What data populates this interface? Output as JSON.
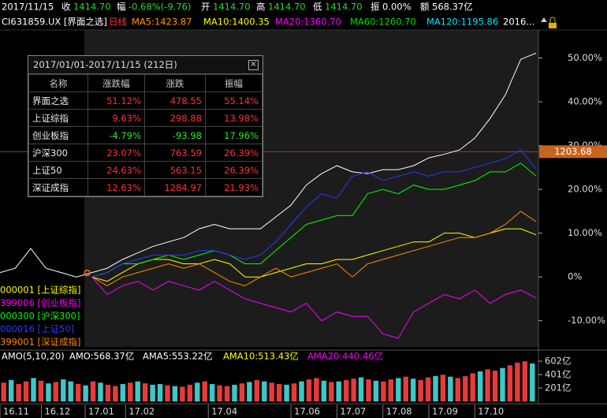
{
  "quote_bar": {
    "date": "2017/11/15",
    "items": [
      {
        "label": "收",
        "value": "1414.70",
        "color": "#22dd22"
      },
      {
        "label": "幅",
        "value": "-0.68%(-9.76)",
        "color": "#22dd22"
      },
      {
        "label": "开",
        "value": "1414.70",
        "color": "#22dd22"
      },
      {
        "label": "高",
        "value": "1414.70",
        "color": "#22dd22"
      },
      {
        "label": "低",
        "value": "1414.70",
        "color": "#22dd22"
      },
      {
        "label": "振",
        "value": "0.00%",
        "color": "#ffffff"
      },
      {
        "label": "额",
        "value": "568.37亿",
        "color": "#ffffff"
      }
    ]
  },
  "ma_bar": {
    "symbol": "CI631859.UX [界面之选]",
    "period": "日线",
    "items": [
      {
        "text": "MA5:1423.87",
        "color": "#ff9900"
      },
      {
        "text": "MA10:1400.35",
        "color": "#ffff00"
      },
      {
        "text": "MA20:1360.70",
        "color": "#ff00ff"
      },
      {
        "text": "MA60:1260.70",
        "color": "#00dd00"
      },
      {
        "text": "MA120:1195.86",
        "color": "#00e5ff"
      },
      {
        "text": "2016...",
        "color": "#ffffff"
      }
    ]
  },
  "chart_data": {
    "type": "line",
    "xlim": [
      0,
      35
    ],
    "ylim": [
      -16,
      56.4
    ],
    "yticks": [
      {
        "value": 50,
        "label": "50.00%"
      },
      {
        "value": 40,
        "label": "40.00%"
      },
      {
        "value": 30,
        "label": "30.00%"
      },
      {
        "value": 20,
        "label": "20.00%"
      },
      {
        "value": 10,
        "label": "10.00%"
      },
      {
        "value": 0,
        "label": "0%"
      },
      {
        "value": -10,
        "label": "-10.00%"
      }
    ],
    "xticks": [
      {
        "value": 0,
        "label": "16.11"
      },
      {
        "value": 2.7,
        "label": "16.12"
      },
      {
        "value": 5.56,
        "label": "17.01"
      },
      {
        "value": 8.2,
        "label": "17.02"
      },
      {
        "value": 13.6,
        "label": "17.04"
      },
      {
        "value": 19,
        "label": "17.06"
      },
      {
        "value": 22,
        "label": "17.07"
      },
      {
        "value": 25,
        "label": "17.08"
      },
      {
        "value": 28,
        "label": "17.09"
      },
      {
        "value": 31,
        "label": "17.10"
      }
    ],
    "marker": {
      "value": 28.6,
      "label": "1203.68",
      "color": "#c8641e"
    },
    "series": [
      {
        "color": "#ffffff",
        "values": [
          1,
          2,
          6.5,
          2,
          1,
          0,
          1,
          2,
          4,
          5.5,
          7,
          8,
          9,
          11,
          12,
          11,
          11,
          11,
          13.7,
          16.4,
          21,
          23.6,
          25.4,
          24,
          23.6,
          24.5,
          24.5,
          25.4,
          27.2,
          28,
          29,
          31.7,
          36.2,
          41.6,
          49.7,
          51.12
        ]
      },
      {
        "name": "000001 [上证综指]",
        "color": "#ffff00",
        "values": [
          null,
          null,
          null,
          null,
          null,
          null,
          0,
          -1,
          1,
          3,
          4,
          4,
          3,
          3,
          4,
          3,
          0,
          0,
          1,
          2,
          3,
          3,
          4,
          4,
          5,
          6,
          7,
          8,
          8,
          10,
          10,
          9,
          10,
          11,
          11,
          9.63
        ]
      },
      {
        "name": "399006 [创业板指]",
        "color": "#ff00ff",
        "values": [
          null,
          null,
          null,
          null,
          null,
          null,
          0,
          -4,
          -2,
          -1,
          -3,
          -1,
          -2,
          -3,
          -1,
          -3,
          -5,
          -6,
          -7,
          -8,
          -6,
          -10,
          -8,
          -9,
          -9,
          -13,
          -14,
          -8,
          -6,
          -4,
          -5,
          -3,
          -6,
          -4,
          -3,
          -4.79
        ]
      },
      {
        "name": "000300 [沪深300]",
        "color": "#00ff00",
        "values": [
          null,
          null,
          null,
          null,
          null,
          null,
          0,
          1,
          3,
          3,
          4,
          5,
          4,
          5,
          6,
          5,
          3,
          3,
          6,
          9,
          12,
          13,
          14,
          14,
          19,
          20,
          19,
          21,
          20,
          20,
          21,
          22,
          24,
          24,
          26,
          23.07
        ]
      },
      {
        "name": "000016 [上证50]",
        "color": "#2838ff",
        "values": [
          null,
          null,
          null,
          null,
          null,
          null,
          0,
          1,
          3,
          4,
          5,
          5,
          5,
          6,
          6,
          5,
          4,
          5,
          8,
          12,
          16,
          19,
          18,
          23,
          24,
          22,
          23,
          24,
          23,
          24,
          24,
          25,
          26,
          27,
          29,
          24.63
        ]
      },
      {
        "name": "399001 [深证成指]",
        "color": "#ff8c00",
        "values": [
          null,
          null,
          null,
          null,
          null,
          null,
          0,
          -2,
          0,
          1,
          2,
          3,
          2,
          3,
          1,
          -1,
          -2,
          0,
          2,
          0,
          1,
          2,
          3,
          0,
          3,
          4,
          5,
          6,
          7,
          8,
          9,
          9,
          10,
          12,
          15,
          12.63
        ]
      }
    ]
  },
  "range_table": {
    "title": "2017/01/01-2017/11/15 (212日)",
    "columns": [
      "名称",
      "涨跌幅",
      "涨跌",
      "振幅"
    ],
    "rows": [
      [
        "界面之选",
        "51.12%",
        "478.55",
        "55.14%"
      ],
      [
        "上证综指",
        "9.63%",
        "298.88",
        "13.98%"
      ],
      [
        "创业板指",
        "-4.79%",
        "-93.98",
        "17.96%"
      ],
      [
        "沪深300",
        "23.07%",
        "763.59",
        "26.39%"
      ],
      [
        "上证50",
        "24.63%",
        "563.15",
        "26.39%"
      ],
      [
        "深证成指",
        "12.63%",
        "1284.97",
        "21.93%"
      ]
    ],
    "up_color": "#ff3030",
    "down_color": "#22ee22"
  },
  "volume_data": {
    "type": "bar",
    "title": "AMO(5,10,20)",
    "labels": [
      {
        "text": "AMO:568.37亿",
        "color": "#ffffff"
      },
      {
        "text": "AMA5:553.22亿",
        "color": "#ffffff"
      },
      {
        "text": "AMA10:513.43亿",
        "color": "#ffff00"
      },
      {
        "text": "AMA20:440.46亿",
        "color": "#ff00ff"
      }
    ],
    "ylim": [
      0,
      720
    ],
    "yticks": [
      {
        "value": 602,
        "label": "602亿"
      },
      {
        "value": 401,
        "label": "401亿"
      },
      {
        "value": 201,
        "label": "201亿"
      }
    ],
    "values": [
      280,
      320,
      260,
      300,
      350,
      310,
      270,
      290,
      330,
      300,
      260,
      240,
      300,
      280,
      250,
      230,
      260,
      280,
      300,
      270,
      250,
      260,
      240,
      230,
      220,
      250,
      280,
      300,
      260,
      240,
      230,
      250,
      270,
      290,
      320,
      300,
      280,
      260,
      250,
      270,
      300,
      330,
      350,
      310,
      290,
      300,
      320,
      340,
      360,
      330,
      310,
      300,
      330,
      350,
      370,
      340,
      320,
      360,
      380,
      400,
      370,
      350,
      380,
      420,
      450,
      480,
      460,
      500,
      540,
      580,
      600,
      568
    ],
    "colors": [
      "#e83a3a",
      "#3cc8c8",
      "#e83a3a",
      "#e83a3a",
      "#3cc8c8",
      "#e83a3a",
      "#3cc8c8",
      "#e83a3a",
      "#3cc8c8",
      "#3cc8c8",
      "#e83a3a",
      "#3cc8c8",
      "#e83a3a",
      "#3cc8c8",
      "#e83a3a",
      "#e83a3a",
      "#3cc8c8",
      "#e83a3a",
      "#3cc8c8",
      "#e83a3a",
      "#3cc8c8",
      "#3cc8c8",
      "#e83a3a",
      "#3cc8c8",
      "#e83a3a",
      "#e83a3a",
      "#3cc8c8",
      "#e83a3a",
      "#3cc8c8",
      "#e83a3a",
      "#e83a3a",
      "#3cc8c8",
      "#e83a3a",
      "#3cc8c8",
      "#e83a3a",
      "#3cc8c8",
      "#e83a3a",
      "#e83a3a",
      "#3cc8c8",
      "#e83a3a",
      "#3cc8c8",
      "#e83a3a",
      "#e83a3a",
      "#3cc8c8",
      "#e83a3a",
      "#3cc8c8",
      "#e83a3a",
      "#e83a3a",
      "#3cc8c8",
      "#e83a3a",
      "#3cc8c8",
      "#e83a3a",
      "#e83a3a",
      "#3cc8c8",
      "#e83a3a",
      "#3cc8c8",
      "#e83a3a",
      "#e83a3a",
      "#3cc8c8",
      "#e83a3a",
      "#3cc8c8",
      "#e83a3a",
      "#e83a3a",
      "#e83a3a",
      "#3cc8c8",
      "#e83a3a",
      "#e83a3a",
      "#3cc8c8",
      "#e83a3a",
      "#e83a3a",
      "#e83a3a",
      "#3cc8c8"
    ]
  }
}
